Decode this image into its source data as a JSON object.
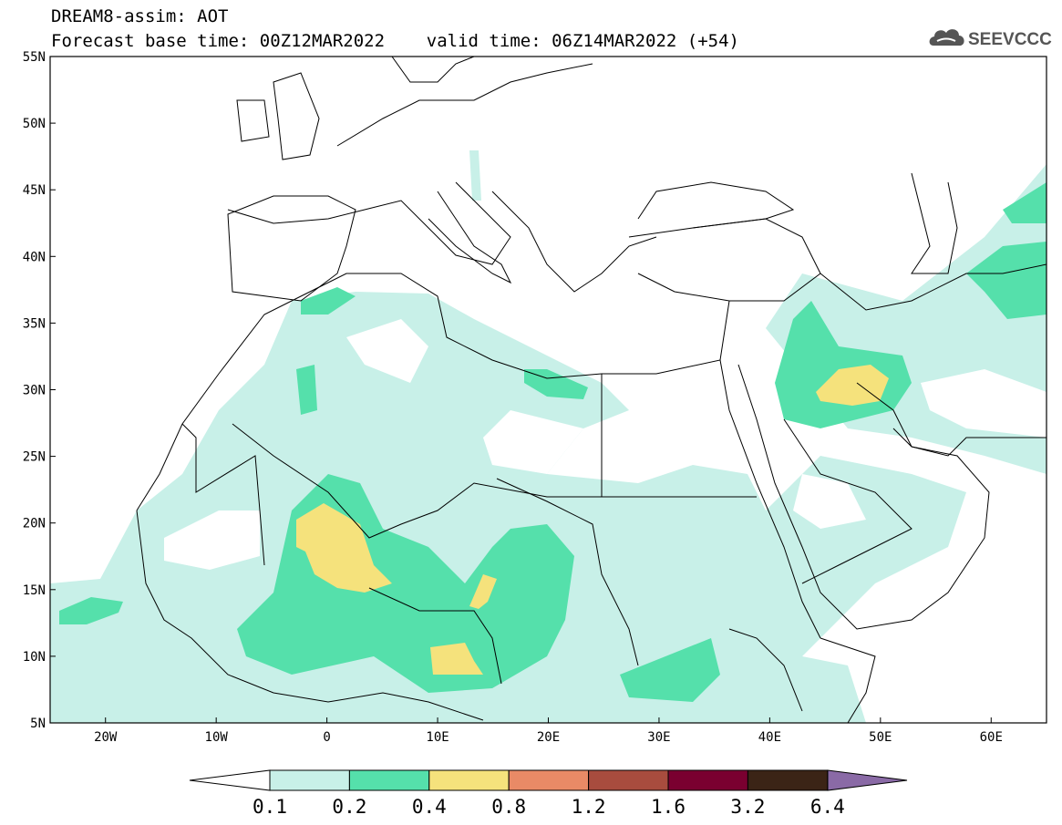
{
  "header": {
    "line1": "DREAM8-assim: AOT",
    "line2": "Forecast base time: 00Z12MAR2022    valid time: 06Z14MAR2022 (+54)"
  },
  "logo": {
    "text": "SEEVCCC",
    "icon": "cloud-icon"
  },
  "map": {
    "lon_range": [
      -25,
      65
    ],
    "lat_range": [
      5,
      55
    ],
    "lat_labels": [
      "55N",
      "50N",
      "45N",
      "40N",
      "35N",
      "30N",
      "25N",
      "20N",
      "15N",
      "10N",
      "5N"
    ],
    "lon_labels": [
      "20W",
      "10W",
      "0",
      "10E",
      "20E",
      "30E",
      "40E",
      "50E",
      "60E"
    ]
  },
  "colorbar": {
    "labels": [
      "0.1",
      "0.2",
      "0.4",
      "0.8",
      "1.2",
      "1.6",
      "3.2",
      "6.4"
    ],
    "colors": [
      "#ffffff",
      "#c8f0e8",
      "#55e0ab",
      "#f5e27c",
      "#e98a66",
      "#a84c3e",
      "#7a0030",
      "#3b2416",
      "#8a6aa6"
    ]
  },
  "legend_colors": {
    "c1": "#c8f0e8",
    "c2": "#55e0ab",
    "c3": "#f5e27c"
  }
}
